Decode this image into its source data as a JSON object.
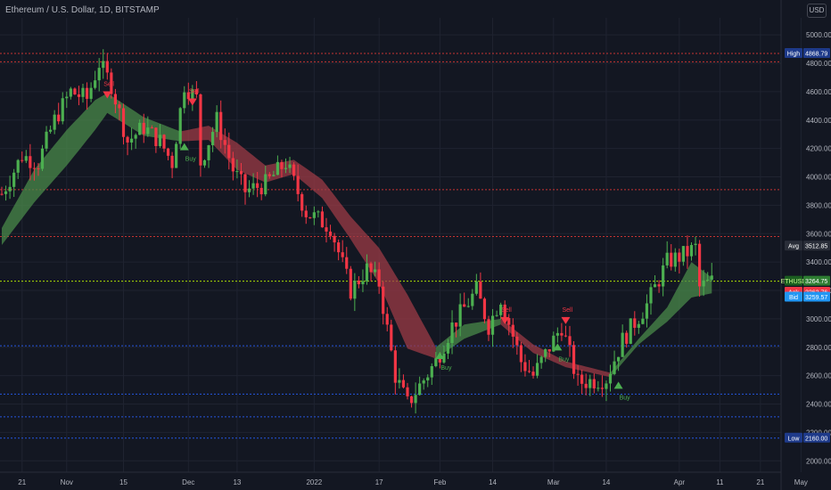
{
  "header": {
    "title": "Ethereum / U.S. Dollar, 1D, BITSTAMP",
    "currency_button": "USD"
  },
  "colors": {
    "background": "#131722",
    "grid": "#1f2330",
    "up": "#4caf50",
    "down": "#f23645",
    "band_bull": "#4a8a4a",
    "band_bear": "#9c3b45",
    "level_red": "#e53935",
    "level_blue": "#2962ff",
    "current_price": "#c6ff00",
    "ask": "#f23645",
    "bid": "#2196f3"
  },
  "chart_data": {
    "type": "candlestick",
    "symbol": "ETHUSD",
    "timeframe": "1D",
    "exchange": "BITSTAMP",
    "x_ticks": [
      "21",
      "Nov",
      "15",
      "Dec",
      "13",
      "2022",
      "17",
      "Feb",
      "14",
      "Mar",
      "14",
      "Apr",
      "11",
      "21",
      "May"
    ],
    "y_ticks": [
      "5000.00",
      "4800.00",
      "4600.00",
      "4400.00",
      "4200.00",
      "4000.00",
      "3800.00",
      "3600.00",
      "3400.00",
      "3200.00",
      "3000.00",
      "2800.00",
      "2600.00",
      "2400.00",
      "2200.00",
      "2000.00"
    ],
    "ylim": [
      1920,
      5120
    ],
    "price_labels": [
      {
        "name": "High",
        "value": "4868.79",
        "price": 4868.79
      },
      {
        "name": "Avg",
        "value": "3512.85",
        "price": 3512.85
      },
      {
        "name": "ETHUSD",
        "value": "3264.75",
        "sub": "14:15",
        "price": 3264.75
      },
      {
        "name": "Ask",
        "value": "3262.76",
        "price": 3262.76
      },
      {
        "name": "Bid",
        "value": "3259.57",
        "price": 3259.57
      },
      {
        "name": "Low",
        "value": "2160.00",
        "price": 2160.0
      }
    ],
    "horizontal_levels": [
      {
        "price": 4868.79,
        "color": "red"
      },
      {
        "price": 4810,
        "color": "red"
      },
      {
        "price": 3910,
        "color": "red"
      },
      {
        "price": 3580,
        "color": "red"
      },
      {
        "price": 3264.75,
        "color": "green"
      },
      {
        "price": 2810,
        "color": "blue"
      },
      {
        "price": 2470,
        "color": "blue"
      },
      {
        "price": 2310,
        "color": "blue"
      },
      {
        "price": 2160,
        "color": "blue"
      }
    ],
    "signals": [
      {
        "label": "Sell",
        "date": "2021-11-11",
        "price": 4590
      },
      {
        "label": "Buy",
        "date": "2021-11-30",
        "price": 4250
      },
      {
        "label": "Sell",
        "date": "2021-12-02",
        "price": 4540
      },
      {
        "label": "Buy",
        "date": "2022-02-01",
        "price": 2780
      },
      {
        "label": "Sell",
        "date": "2022-02-17",
        "price": 3000
      },
      {
        "label": "Buy",
        "date": "2022-03-02",
        "price": 2840
      },
      {
        "label": "Sell",
        "date": "2022-03-04",
        "price": 3000
      },
      {
        "label": "Buy",
        "date": "2022-03-17",
        "price": 2570
      }
    ],
    "band_regimes": [
      {
        "from": "2021-10-16",
        "to": "2021-11-29",
        "color": "bull"
      },
      {
        "from": "2021-11-29",
        "to": "2022-01-31",
        "color": "bear"
      },
      {
        "from": "2022-01-31",
        "to": "2022-02-16",
        "color": "bull"
      },
      {
        "from": "2022-02-16",
        "to": "2022-03-15",
        "color": "bear"
      },
      {
        "from": "2022-03-15",
        "to": "2022-04-09",
        "color": "bull"
      }
    ],
    "band": [
      {
        "date": "2021-10-16",
        "upper": 3640,
        "lower": 3520
      },
      {
        "date": "2021-10-24",
        "upper": 4050,
        "lower": 3820
      },
      {
        "date": "2021-11-01",
        "upper": 4330,
        "lower": 4080
      },
      {
        "date": "2021-11-08",
        "upper": 4540,
        "lower": 4330
      },
      {
        "date": "2021-11-11",
        "upper": 4590,
        "lower": 4450
      },
      {
        "date": "2021-11-20",
        "upper": 4420,
        "lower": 4290
      },
      {
        "date": "2021-11-29",
        "upper": 4320,
        "lower": 4250
      },
      {
        "date": "2021-12-06",
        "upper": 4360,
        "lower": 4260
      },
      {
        "date": "2021-12-13",
        "upper": 4240,
        "lower": 4050
      },
      {
        "date": "2021-12-20",
        "upper": 4080,
        "lower": 3960
      },
      {
        "date": "2021-12-27",
        "upper": 4120,
        "lower": 4020
      },
      {
        "date": "2022-01-03",
        "upper": 3980,
        "lower": 3850
      },
      {
        "date": "2022-01-10",
        "upper": 3720,
        "lower": 3560
      },
      {
        "date": "2022-01-17",
        "upper": 3500,
        "lower": 3250
      },
      {
        "date": "2022-01-24",
        "upper": 3170,
        "lower": 2790
      },
      {
        "date": "2022-01-31",
        "upper": 2800,
        "lower": 2720
      },
      {
        "date": "2022-02-07",
        "upper": 2960,
        "lower": 2860
      },
      {
        "date": "2022-02-16",
        "upper": 3000,
        "lower": 2960
      },
      {
        "date": "2022-02-24",
        "upper": 2820,
        "lower": 2760
      },
      {
        "date": "2022-03-04",
        "upper": 2700,
        "lower": 2660
      },
      {
        "date": "2022-03-15",
        "upper": 2620,
        "lower": 2590
      },
      {
        "date": "2022-03-22",
        "upper": 2860,
        "lower": 2820
      },
      {
        "date": "2022-03-29",
        "upper": 3080,
        "lower": 2980
      },
      {
        "date": "2022-04-04",
        "upper": 3400,
        "lower": 3150
      },
      {
        "date": "2022-04-09",
        "upper": 3290,
        "lower": 3180
      }
    ],
    "ohlc_anchors": [
      {
        "date": "2021-10-16",
        "close": 3880
      },
      {
        "date": "2021-10-21",
        "close": 4150
      },
      {
        "date": "2021-10-25",
        "close": 4100
      },
      {
        "date": "2021-10-29",
        "close": 4400
      },
      {
        "date": "2021-11-02",
        "close": 4600
      },
      {
        "date": "2021-11-06",
        "close": 4550
      },
      {
        "date": "2021-11-09",
        "close": 4800
      },
      {
        "date": "2021-11-12",
        "close": 4650
      },
      {
        "date": "2021-11-16",
        "close": 4250
      },
      {
        "date": "2021-11-20",
        "close": 4350
      },
      {
        "date": "2021-11-24",
        "close": 4250
      },
      {
        "date": "2021-11-27",
        "close": 4100
      },
      {
        "date": "2021-11-30",
        "close": 4650
      },
      {
        "date": "2021-12-03",
        "close": 4550
      },
      {
        "date": "2021-12-04",
        "close": 4100
      },
      {
        "date": "2021-12-08",
        "close": 4400
      },
      {
        "date": "2021-12-12",
        "close": 4050
      },
      {
        "date": "2021-12-15",
        "close": 3900
      },
      {
        "date": "2021-12-20",
        "close": 3950
      },
      {
        "date": "2021-12-25",
        "close": 4100
      },
      {
        "date": "2021-12-30",
        "close": 3750
      },
      {
        "date": "2022-01-05",
        "close": 3650
      },
      {
        "date": "2022-01-10",
        "close": 3200
      },
      {
        "date": "2022-01-14",
        "close": 3350
      },
      {
        "date": "2022-01-17",
        "close": 3250
      },
      {
        "date": "2022-01-21",
        "close": 2600
      },
      {
        "date": "2022-01-24",
        "close": 2400
      },
      {
        "date": "2022-01-31",
        "close": 2700
      },
      {
        "date": "2022-02-04",
        "close": 2950
      },
      {
        "date": "2022-02-10",
        "close": 3200
      },
      {
        "date": "2022-02-13",
        "close": 2950
      },
      {
        "date": "2022-02-16",
        "close": 3150
      },
      {
        "date": "2022-02-21",
        "close": 2700
      },
      {
        "date": "2022-02-24",
        "close": 2600
      },
      {
        "date": "2022-02-28",
        "close": 2800
      },
      {
        "date": "2022-03-03",
        "close": 2950
      },
      {
        "date": "2022-03-07",
        "close": 2550
      },
      {
        "date": "2022-03-14",
        "close": 2580
      },
      {
        "date": "2022-03-18",
        "close": 2850
      },
      {
        "date": "2022-03-24",
        "close": 3100
      },
      {
        "date": "2022-03-29",
        "close": 3400
      },
      {
        "date": "2022-04-02",
        "close": 3450
      },
      {
        "date": "2022-04-05",
        "close": 3500
      },
      {
        "date": "2022-04-06",
        "close": 3220
      },
      {
        "date": "2022-04-09",
        "close": 3264.75
      }
    ]
  }
}
